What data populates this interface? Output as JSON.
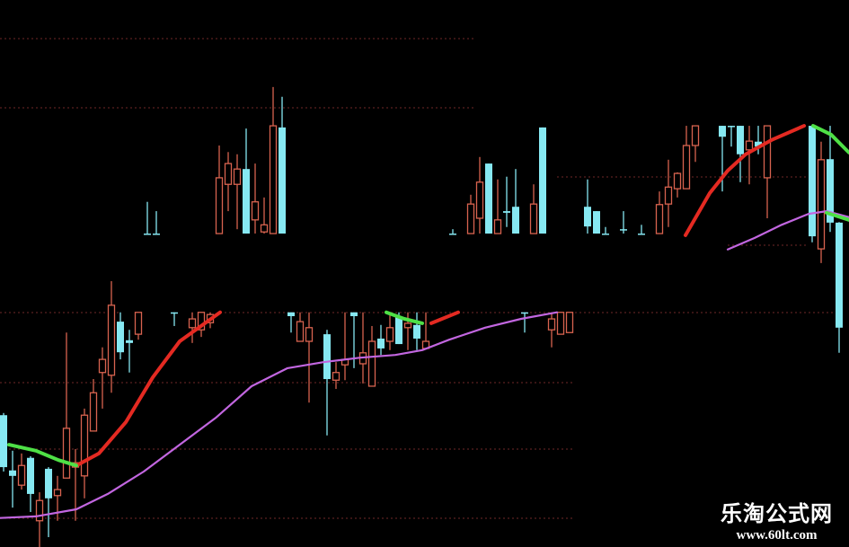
{
  "chart_data": {
    "type": "candlestick",
    "title": "",
    "xlabel": "",
    "ylabel": "",
    "ylim": [
      0,
      100
    ],
    "grid": true,
    "background": "#000000",
    "colors": {
      "up_candle": "#d8634f",
      "down_candle": "#86e8f2",
      "ma_rising": "#e42a22",
      "ma_falling": "#4ee046",
      "ma_long": "#c266e0",
      "grid": "#5a2020"
    },
    "candles_fields": [
      "index",
      "open",
      "high",
      "low",
      "close"
    ],
    "candles": [
      [
        0,
        24.1,
        24.5,
        13.8,
        14.6
      ],
      [
        1,
        14.0,
        17.6,
        7.2,
        13.0
      ],
      [
        2,
        11.3,
        17.1,
        10.5,
        14.9
      ],
      [
        3,
        16.3,
        16.6,
        6.4,
        9.7
      ],
      [
        4,
        4.8,
        10.0,
        0,
        8.5
      ],
      [
        5,
        14.3,
        14.6,
        1.8,
        8.9
      ],
      [
        6,
        9.4,
        13.0,
        4.8,
        10.5
      ],
      [
        7,
        12.6,
        39.2,
        12.6,
        21.7
      ],
      [
        8,
        14.6,
        17.9,
        4.8,
        15.4
      ],
      [
        9,
        13.0,
        25.3,
        8.9,
        24.1
      ],
      [
        10,
        21.2,
        30.7,
        21.2,
        28.2
      ],
      [
        11,
        31.9,
        36.5,
        25.3,
        34.3
      ],
      [
        12,
        31.4,
        48.6,
        28.2,
        44.2
      ],
      [
        13,
        41.2,
        42.9,
        34.3,
        35.6
      ],
      [
        14,
        37.8,
        39.7,
        31.9,
        37.3
      ],
      [
        15,
        38.9,
        42.9,
        37.9,
        42.9
      ],
      [
        16,
        57.3,
        63.1,
        57.3,
        57.3
      ],
      [
        17,
        57.3,
        61.4,
        57.3,
        57.3
      ],
      [
        19,
        42.9,
        42.9,
        40.4,
        42.9
      ],
      [
        21,
        40.1,
        42.9,
        37.3,
        41.7
      ],
      [
        22,
        39.7,
        42.9,
        38.4,
        42.9
      ],
      [
        23,
        41.0,
        42.9,
        40.0,
        42.5
      ],
      [
        24,
        57.3,
        73.4,
        57.3,
        67.5
      ],
      [
        25,
        66.3,
        72.2,
        61.4,
        70.1
      ],
      [
        26,
        66.3,
        71.8,
        58.1,
        69.1
      ],
      [
        27,
        69.1,
        76.5,
        57.3,
        57.3
      ],
      [
        28,
        59.8,
        70.1,
        57.3,
        63.1
      ],
      [
        29,
        57.6,
        63.9,
        57.3,
        58.9
      ],
      [
        30,
        57.3,
        84.1,
        57.3,
        77.0
      ],
      [
        31,
        76.7,
        82.3,
        57.3,
        57.3
      ],
      [
        32,
        42.9,
        42.9,
        39.2,
        42.2
      ],
      [
        33,
        37.6,
        42.9,
        37.6,
        41.2
      ],
      [
        34,
        37.6,
        42.9,
        26.4,
        40.1
      ],
      [
        36,
        38.9,
        39.7,
        20.4,
        30.7
      ],
      [
        37,
        30.5,
        33.8,
        28.9,
        31.9
      ],
      [
        38,
        33.3,
        42.9,
        30.5,
        34.3
      ],
      [
        39,
        42.9,
        42.9,
        32.7,
        42.2
      ],
      [
        40,
        33.5,
        42.9,
        29.9,
        35.5
      ],
      [
        41,
        29.4,
        40.4,
        29.4,
        37.6
      ],
      [
        42,
        38.1,
        40.6,
        35.1,
        36.3
      ],
      [
        43,
        37.6,
        42.9,
        36.0,
        40.1
      ],
      [
        44,
        42.0,
        42.9,
        37.1,
        37.1
      ],
      [
        45,
        40.1,
        42.9,
        36.0,
        40.9
      ],
      [
        46,
        40.6,
        42.9,
        36.0,
        38.1
      ],
      [
        47,
        36.3,
        42.9,
        36.3,
        37.6
      ],
      [
        50,
        57.3,
        58.1,
        57.3,
        57.3
      ],
      [
        52,
        57.3,
        64.4,
        57.3,
        62.7
      ],
      [
        53,
        60.1,
        71.3,
        57.3,
        66.7
      ],
      [
        54,
        70.1,
        70.1,
        57.3,
        57.3
      ],
      [
        55,
        57.3,
        67.2,
        57.3,
        59.8
      ],
      [
        56,
        61.4,
        67.7,
        58.5,
        61.1
      ],
      [
        57,
        62.2,
        69.1,
        57.3,
        57.3
      ],
      [
        58,
        42.9,
        42.9,
        39.2,
        42.9
      ],
      [
        59,
        57.3,
        66.3,
        57.3,
        62.7
      ],
      [
        60,
        76.7,
        76.7,
        57.3,
        57.3
      ],
      [
        61,
        39.7,
        42.9,
        36.5,
        41.7
      ],
      [
        62,
        38.9,
        42.9,
        38.9,
        42.9
      ],
      [
        63,
        39.2,
        42.9,
        39.2,
        42.9
      ],
      [
        65,
        62.2,
        67.2,
        57.3,
        58.6
      ],
      [
        66,
        61.4,
        61.4,
        57.3,
        57.3
      ],
      [
        67,
        57.3,
        58.5,
        57.3,
        57.3
      ],
      [
        69,
        58.1,
        61.4,
        57.3,
        58.1
      ],
      [
        71,
        57.3,
        58.9,
        57.3,
        57.3
      ],
      [
        73,
        57.3,
        65.0,
        57.3,
        62.6
      ],
      [
        74,
        62.7,
        70.8,
        58.5,
        65.8
      ],
      [
        75,
        65.5,
        68.5,
        63.9,
        68.3
      ],
      [
        76,
        65.5,
        77.0,
        65.5,
        73.4
      ],
      [
        77,
        73.4,
        77.0,
        70.4,
        77.0
      ],
      [
        80,
        77.0,
        77.0,
        65.0,
        75.0
      ],
      [
        81,
        77.0,
        77.0,
        73.2,
        77.0
      ],
      [
        82,
        77.0,
        77.0,
        66.7,
        71.8
      ],
      [
        83,
        72.6,
        77.0,
        66.3,
        74.2
      ],
      [
        84,
        74.1,
        77.0,
        71.8,
        73.2
      ],
      [
        85,
        67.5,
        77.0,
        60.1,
        77.0
      ],
      [
        90,
        77.0,
        77.0,
        55.7,
        56.8
      ],
      [
        91,
        54.5,
        74.1,
        51.9,
        70.8
      ],
      [
        92,
        70.9,
        77.0,
        57.6,
        59.3
      ],
      [
        93,
        59.3,
        59.4,
        35.5,
        40.1
      ]
    ],
    "lines": [
      {
        "color_key": "ma_long",
        "points": [
          [
            -0.4,
            5.3
          ],
          [
            3.6,
            5.6
          ],
          [
            8.1,
            6.9
          ],
          [
            11.6,
            9.7
          ],
          [
            15.6,
            13.8
          ],
          [
            19.6,
            18.7
          ],
          [
            23.6,
            23.6
          ],
          [
            27.6,
            29.4
          ],
          [
            31.6,
            32.7
          ],
          [
            35.6,
            33.8
          ],
          [
            39.6,
            34.6
          ],
          [
            43.6,
            35.1
          ],
          [
            46.6,
            36.0
          ],
          [
            49.6,
            37.9
          ],
          [
            53.6,
            40.1
          ],
          [
            57.6,
            41.7
          ],
          [
            61.6,
            42.9
          ]
        ]
      },
      {
        "color_key": "ma_long",
        "points": [
          [
            80.6,
            54.4
          ],
          [
            83.6,
            56.5
          ],
          [
            86.6,
            58.9
          ],
          [
            89.6,
            60.9
          ],
          [
            91.6,
            61.4
          ],
          [
            94.1,
            60.3
          ]
        ]
      },
      {
        "color_key": "ma_rising",
        "points": [
          [
            8.1,
            14.9
          ],
          [
            10.6,
            17.1
          ],
          [
            13.6,
            22.8
          ],
          [
            16.6,
            31.0
          ],
          [
            19.6,
            37.6
          ],
          [
            24.1,
            42.9
          ]
        ]
      },
      {
        "color_key": "ma_rising",
        "points": [
          [
            47.6,
            40.9
          ],
          [
            50.6,
            42.9
          ]
        ]
      },
      {
        "color_key": "ma_rising",
        "points": [
          [
            75.9,
            57.0
          ],
          [
            78.6,
            64.7
          ],
          [
            80.6,
            68.8
          ],
          [
            82.6,
            71.8
          ],
          [
            85.6,
            74.5
          ],
          [
            89.1,
            77.0
          ]
        ]
      },
      {
        "color_key": "ma_falling",
        "points": [
          [
            0.6,
            18.7
          ],
          [
            3.6,
            17.6
          ],
          [
            6.1,
            15.9
          ],
          [
            8.1,
            14.9
          ]
        ]
      },
      {
        "color_key": "ma_falling",
        "points": [
          [
            42.6,
            42.9
          ],
          [
            44.6,
            41.7
          ],
          [
            46.6,
            40.9
          ]
        ]
      },
      {
        "color_key": "ma_falling",
        "points": [
          [
            90.1,
            77.0
          ],
          [
            92.1,
            75.4
          ],
          [
            94.1,
            72.1
          ]
        ]
      },
      {
        "color_key": "ma_falling",
        "points": [
          [
            91.6,
            61.1
          ],
          [
            94.1,
            59.8
          ]
        ]
      }
    ]
  },
  "watermark": {
    "name": "乐淘公式网",
    "url": "www.60lt.com"
  }
}
